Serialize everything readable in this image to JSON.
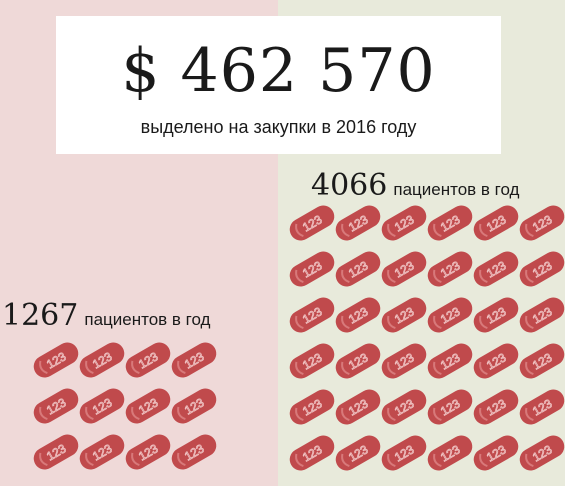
{
  "headline": {
    "amount": "$ 462 570",
    "caption": "выделено на закупки в 2016 году"
  },
  "groups": {
    "before": {
      "number": "1267",
      "unit": "пациентов в год",
      "pill_count": 12
    },
    "after": {
      "number": "4066",
      "unit": "пациентов в год",
      "pill_count": 36
    }
  },
  "pill": {
    "label": "123",
    "color": "#c04a4c"
  },
  "colors": {
    "left_panel": "#efd9d8",
    "right_panel": "#e8eadb"
  }
}
